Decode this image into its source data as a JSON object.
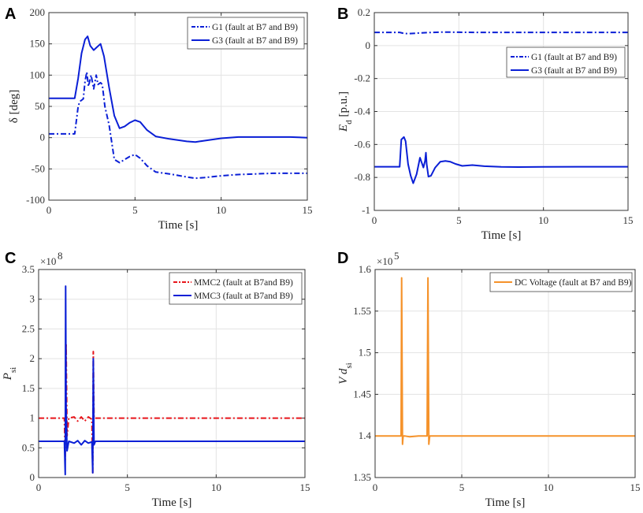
{
  "chart_data": [
    {
      "panel_label": "A",
      "type": "line",
      "xlabel": "Time [s]",
      "ylabel": "δ [deg]",
      "xlim": [
        0,
        15
      ],
      "ylim": [
        -100,
        200
      ],
      "xticks": [
        0,
        5,
        10,
        15
      ],
      "yticks": [
        -100,
        -50,
        0,
        50,
        100,
        150,
        200
      ],
      "grid": true,
      "legend": "top-right",
      "series": [
        {
          "name": "G1 (fault at B7 and B9)",
          "color": "#0a1fd6",
          "dash": "dashdot",
          "x": [
            0,
            1.5,
            1.7,
            1.8,
            2.0,
            2.1,
            2.2,
            2.3,
            2.45,
            2.6,
            2.75,
            2.85,
            3.0,
            3.1,
            3.25,
            3.5,
            3.8,
            4.1,
            4.4,
            4.7,
            5.0,
            5.3,
            5.7,
            6.2,
            7.0,
            8.0,
            8.5,
            9.0,
            10.0,
            11.0,
            12.0,
            13.0,
            14.0,
            15.0
          ],
          "y": [
            6,
            6,
            50,
            58,
            62,
            90,
            105,
            82,
            100,
            78,
            100,
            85,
            88,
            85,
            50,
            20,
            -35,
            -40,
            -35,
            -30,
            -27,
            -33,
            -45,
            -55,
            -58,
            -63,
            -65,
            -64,
            -61,
            -59,
            -58,
            -57,
            -57,
            -57
          ]
        },
        {
          "name": "G3 (fault at B7 and B9)",
          "color": "#0a1fd6",
          "dash": "solid",
          "x": [
            0,
            1.5,
            1.7,
            1.9,
            2.1,
            2.25,
            2.4,
            2.6,
            2.8,
            3.0,
            3.2,
            3.5,
            3.8,
            4.1,
            4.4,
            4.7,
            5.0,
            5.3,
            5.7,
            6.2,
            7.0,
            8.0,
            8.5,
            9.0,
            10.0,
            11.0,
            12.0,
            13.0,
            14.0,
            15.0
          ],
          "y": [
            63,
            63,
            95,
            135,
            157,
            162,
            147,
            140,
            145,
            150,
            130,
            80,
            35,
            15,
            18,
            24,
            28,
            25,
            12,
            2,
            -2,
            -6,
            -7,
            -5,
            -1,
            1,
            1,
            1,
            1,
            0
          ]
        }
      ]
    },
    {
      "panel_label": "B",
      "type": "line",
      "xlabel": "Time [s]",
      "ylabel": "E_d [p.u.]",
      "xlim": [
        0,
        15
      ],
      "ylim": [
        -1,
        0.2
      ],
      "xticks": [
        0,
        5,
        10,
        15
      ],
      "yticks": [
        -1,
        -0.8,
        -0.6,
        -0.4,
        -0.2,
        0,
        0.2
      ],
      "grid": true,
      "legend": "upper-right",
      "series": [
        {
          "name": "G1 (fault at B7 and B9)",
          "color": "#0a1fd6",
          "dash": "dashdot",
          "x": [
            0,
            1.5,
            1.7,
            2.0,
            2.5,
            3.0,
            3.5,
            4.0,
            5.0,
            6.0,
            8.0,
            10.0,
            12.0,
            15.0
          ],
          "y": [
            0.08,
            0.08,
            0.075,
            0.072,
            0.075,
            0.078,
            0.08,
            0.082,
            0.081,
            0.08,
            0.08,
            0.08,
            0.08,
            0.08
          ]
        },
        {
          "name": "G3 (fault at B7 and B9)",
          "color": "#0a1fd6",
          "dash": "solid",
          "x": [
            0,
            1.5,
            1.6,
            1.75,
            1.85,
            2.0,
            2.15,
            2.3,
            2.5,
            2.7,
            2.9,
            3.0,
            3.05,
            3.1,
            3.2,
            3.35,
            3.6,
            3.9,
            4.2,
            4.5,
            4.8,
            5.2,
            5.8,
            6.5,
            7.5,
            8.5,
            10.0,
            12.0,
            15.0
          ],
          "y": [
            -0.735,
            -0.735,
            -0.57,
            -0.555,
            -0.58,
            -0.72,
            -0.79,
            -0.835,
            -0.78,
            -0.68,
            -0.74,
            -0.7,
            -0.65,
            -0.72,
            -0.795,
            -0.79,
            -0.74,
            -0.705,
            -0.7,
            -0.705,
            -0.718,
            -0.73,
            -0.725,
            -0.732,
            -0.736,
            -0.737,
            -0.736,
            -0.735,
            -0.735
          ]
        }
      ]
    },
    {
      "panel_label": "C",
      "type": "line",
      "xlabel": "Time [s]",
      "ylabel": "P_si",
      "exponent_label": "×10",
      "exponent_power": "8",
      "xlim": [
        0,
        15
      ],
      "ylim": [
        0,
        3.5
      ],
      "xticks": [
        0,
        5,
        10,
        15
      ],
      "yticks": [
        0,
        0.5,
        1,
        1.5,
        2,
        2.5,
        3,
        3.5
      ],
      "grid": true,
      "legend": "top-right",
      "series": [
        {
          "name": "MMC2 (fault at B7and B9)",
          "color": "#e8151b",
          "dash": "dashdot",
          "x": [
            0,
            1.45,
            1.5,
            1.55,
            1.6,
            1.7,
            2.0,
            2.2,
            2.4,
            2.6,
            2.8,
            3.0,
            3.05,
            3.08,
            3.12,
            3.2,
            15.0
          ],
          "y": [
            1.0,
            1.0,
            0.3,
            2.25,
            0.7,
            1.0,
            1.02,
            0.95,
            1.02,
            0.95,
            1.02,
            0.98,
            0.08,
            2.12,
            1.0,
            1.0,
            1.0
          ]
        },
        {
          "name": "MMC3 (fault at B7and B9)",
          "color": "#0a1fd6",
          "dash": "solid",
          "x": [
            0,
            1.45,
            1.5,
            1.52,
            1.55,
            1.6,
            1.7,
            2.0,
            2.2,
            2.4,
            2.6,
            2.8,
            3.0,
            3.05,
            3.08,
            3.12,
            3.2,
            15.0
          ],
          "y": [
            0.61,
            0.61,
            0.05,
            3.22,
            1.2,
            0.45,
            0.61,
            0.58,
            0.62,
            0.55,
            0.62,
            0.58,
            0.6,
            0.08,
            2.0,
            0.55,
            0.61,
            0.61
          ]
        }
      ]
    },
    {
      "panel_label": "D",
      "type": "line",
      "xlabel": "Time [s]",
      "ylabel": "V d_si",
      "exponent_label": "×10",
      "exponent_power": "5",
      "xlim": [
        0,
        15
      ],
      "ylim": [
        1.35,
        1.6
      ],
      "xticks": [
        0,
        5,
        10,
        15
      ],
      "yticks": [
        1.35,
        1.4,
        1.45,
        1.5,
        1.55,
        1.6
      ],
      "grid": true,
      "legend": "top-right",
      "series": [
        {
          "name": "DC Voltage (fault at B7 and B9)",
          "color": "#f5922a",
          "dash": "solid",
          "x": [
            0,
            1.5,
            1.53,
            1.58,
            1.62,
            1.7,
            2.0,
            2.5,
            3.0,
            3.05,
            3.1,
            3.15,
            3.2,
            15.0
          ],
          "y": [
            1.4,
            1.4,
            1.59,
            1.39,
            1.4,
            1.4,
            1.399,
            1.4,
            1.4,
            1.59,
            1.39,
            1.4,
            1.4,
            1.4
          ]
        }
      ]
    }
  ]
}
